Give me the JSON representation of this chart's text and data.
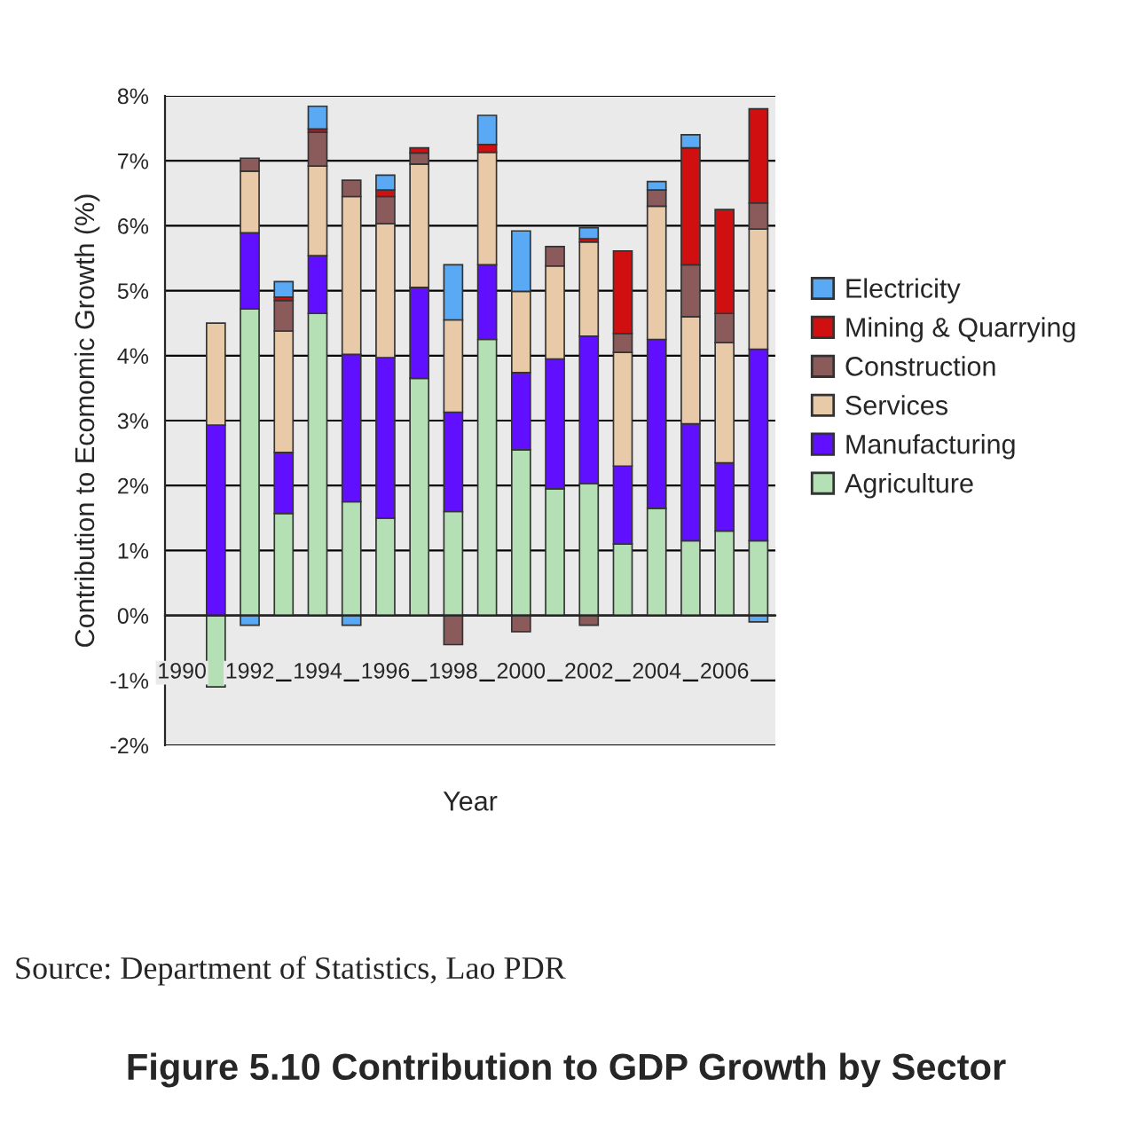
{
  "chart_data": {
    "type": "bar",
    "stacked": true,
    "title": "Figure 5.10 Contribution to GDP Growth by Sector",
    "xlabel": "Year",
    "ylabel": "Contribution to Ecomomic Growth (%)",
    "annotations": [
      "Source: Department of Statistics, Lao PDR"
    ],
    "x": [
      1991,
      1992,
      1993,
      1994,
      1995,
      1996,
      1997,
      1998,
      1999,
      2000,
      2001,
      2002,
      2003,
      2004,
      2005,
      2006,
      2007
    ],
    "xlim": [
      1989.5,
      2007.5
    ],
    "xticks": [
      1990,
      1992,
      1994,
      1996,
      1998,
      2000,
      2002,
      2004,
      2006
    ],
    "ylim": [
      -2,
      8
    ],
    "yticks": [
      {
        "value": -2,
        "label": "-2%"
      },
      {
        "value": -1,
        "label": "-1%"
      },
      {
        "value": 0,
        "label": "0%"
      },
      {
        "value": 1,
        "label": "1%"
      },
      {
        "value": 2,
        "label": "2%"
      },
      {
        "value": 3,
        "label": "3%"
      },
      {
        "value": 4,
        "label": "4%"
      },
      {
        "value": 5,
        "label": "5%"
      },
      {
        "value": 6,
        "label": "6%"
      },
      {
        "value": 7,
        "label": "7%"
      },
      {
        "value": 8,
        "label": "8%"
      }
    ],
    "grid": "y",
    "legend": "right",
    "series": [
      {
        "name": "Agriculture",
        "color": "#b5e0b5",
        "values": [
          -1.1,
          4.72,
          1.57,
          4.65,
          1.75,
          1.5,
          3.65,
          1.6,
          4.25,
          2.55,
          1.95,
          2.03,
          1.1,
          1.65,
          1.15,
          1.3,
          1.15
        ]
      },
      {
        "name": "Manufacturing",
        "color": "#6010ff",
        "values": [
          2.93,
          1.17,
          0.94,
          0.89,
          2.27,
          2.47,
          1.4,
          1.53,
          1.15,
          1.19,
          2.0,
          2.27,
          1.2,
          2.6,
          1.8,
          1.05,
          2.95
        ]
      },
      {
        "name": "Services",
        "color": "#e8c9a8",
        "values": [
          1.57,
          0.95,
          1.87,
          1.38,
          2.43,
          2.06,
          1.9,
          1.42,
          1.73,
          1.25,
          1.43,
          1.45,
          1.75,
          2.05,
          1.65,
          1.85,
          1.85
        ]
      },
      {
        "name": "Construction",
        "color": "#8b5a5a",
        "values": [
          null,
          0.2,
          0.47,
          0.52,
          0.25,
          0.42,
          0.17,
          -0.45,
          null,
          -0.25,
          0.3,
          -0.15,
          0.29,
          0.25,
          0.8,
          0.45,
          0.4
        ]
      },
      {
        "name": "Mining & Quarrying",
        "color": "#d01010",
        "values": [
          null,
          null,
          0.05,
          0.05,
          null,
          0.1,
          0.08,
          null,
          0.12,
          null,
          null,
          0.05,
          1.27,
          null,
          1.8,
          1.6,
          1.45
        ]
      },
      {
        "name": "Electricity",
        "color": "#5aa9f5",
        "values": [
          null,
          -0.15,
          0.24,
          0.35,
          -0.15,
          0.23,
          null,
          0.85,
          0.45,
          0.93,
          null,
          0.17,
          null,
          0.13,
          0.2,
          null,
          -0.1
        ]
      }
    ]
  }
}
